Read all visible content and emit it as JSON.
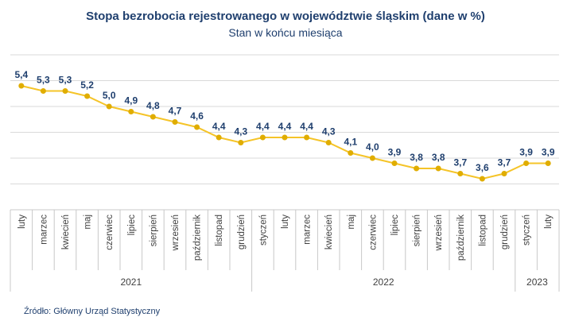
{
  "chart_data": {
    "type": "line",
    "title": "Stopa bezrobocia rejestrowanego w województwie śląskim (dane w %)",
    "subtitle": "Stan w końcu miesiąca",
    "source": "Źródło: Główny Urząd Statystyczny",
    "ylim": [
      3.0,
      6.0
    ],
    "ygrid_step": 0.5,
    "grid": true,
    "y_tick_labels_shown": false,
    "legend": "none",
    "colors": {
      "line": "#f5c428",
      "marker": "#e0ad00",
      "labels": "#1f3f6e",
      "grid": "#d9d9d9"
    },
    "groups": [
      {
        "year": "2021",
        "months": [
          "luty",
          "marzec",
          "kwiecień",
          "maj",
          "czerwiec",
          "lipiec",
          "sierpień",
          "wrzesień",
          "październik",
          "listopad",
          "grudzień"
        ]
      },
      {
        "year": "2022",
        "months": [
          "styczeń",
          "luty",
          "marzec",
          "kwiecień",
          "maj",
          "czerwiec",
          "lipiec",
          "sierpień",
          "wrzesień",
          "październik",
          "listopad",
          "grudzień"
        ]
      },
      {
        "year": "2023",
        "months": [
          "styczeń",
          "luty"
        ]
      }
    ],
    "values": [
      5.4,
      5.3,
      5.3,
      5.2,
      5.0,
      4.9,
      4.8,
      4.7,
      4.6,
      4.4,
      4.3,
      4.4,
      4.4,
      4.4,
      4.3,
      4.1,
      4.0,
      3.9,
      3.8,
      3.8,
      3.7,
      3.6,
      3.7,
      3.9,
      3.9
    ],
    "value_labels": [
      "5,4",
      "5,3",
      "5,3",
      "5,2",
      "5,0",
      "4,9",
      "4,8",
      "4,7",
      "4,6",
      "4,4",
      "4,3",
      "4,4",
      "4,4",
      "4,4",
      "4,3",
      "4,1",
      "4,0",
      "3,9",
      "3,8",
      "3,8",
      "3,7",
      "3,6",
      "3,7",
      "3,9",
      "3,9"
    ]
  }
}
